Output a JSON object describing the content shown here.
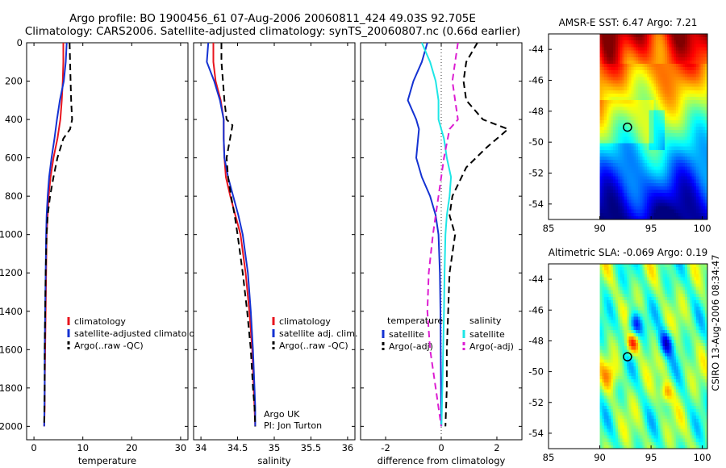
{
  "header": {
    "title_line1": "Argo profile: BO 1900456_61 07-Aug-2006 20060811_424 49.03S 92.705E",
    "title_line2": "Climatology: CARS2006. Satellite-adjusted climatology: synTS_20060807.nc (0.66d earlier)"
  },
  "colors": {
    "climatology": "#e8141e",
    "satellite": "#1432d2",
    "argo": "#000000",
    "sat_diff": "#1ee6e6",
    "argo_adj": "#dc1ed2"
  },
  "chart_data": [
    {
      "type": "line",
      "id": "temperature",
      "xlabel": "temperature",
      "ylabel": "",
      "xlim": [
        -1.5,
        31.5
      ],
      "ylim": [
        2070,
        0
      ],
      "xticks": [
        0,
        10,
        20,
        30
      ],
      "yticks": [
        0,
        200,
        400,
        600,
        800,
        1000,
        1200,
        1400,
        1600,
        1800,
        2000
      ],
      "series": [
        {
          "name": "climatology",
          "color": "#e8141e",
          "style": "solid",
          "x": [
            6.0,
            6.0,
            5.9,
            5.7,
            5.4,
            4.8,
            4.0,
            3.4,
            3.0,
            2.8,
            2.6,
            2.5,
            2.4,
            2.3,
            2.2,
            2.2,
            2.1
          ],
          "y": [
            0,
            100,
            200,
            300,
            400,
            500,
            600,
            700,
            800,
            900,
            1000,
            1200,
            1400,
            1600,
            1800,
            1900,
            2000
          ]
        },
        {
          "name": "satellite-adjusted climatology",
          "color": "#1432d2",
          "style": "solid",
          "x": [
            6.7,
            6.5,
            6.1,
            5.3,
            4.7,
            4.2,
            3.6,
            3.1,
            2.8,
            2.6,
            2.5,
            2.4,
            2.3,
            2.2,
            2.2,
            2.1
          ],
          "y": [
            0,
            100,
            200,
            300,
            400,
            500,
            600,
            700,
            800,
            900,
            1000,
            1200,
            1400,
            1600,
            1800,
            2000
          ]
        },
        {
          "name": "Argo(..raw -QC)",
          "color": "#000000",
          "style": "dashed",
          "x": [
            7.3,
            7.4,
            7.5,
            7.6,
            7.8,
            7.4,
            6.0,
            4.8,
            4.0,
            3.3,
            2.8,
            2.6,
            2.4,
            2.3,
            2.2,
            2.2,
            2.1
          ],
          "y": [
            0,
            100,
            200,
            300,
            400,
            450,
            500,
            600,
            700,
            800,
            900,
            1000,
            1200,
            1400,
            1600,
            1800,
            2000
          ]
        }
      ],
      "legend": {
        "position": "bottom-right",
        "entries": [
          "climatology",
          "satellite-adjusted climatology",
          "Argo(..raw -QC)"
        ]
      }
    },
    {
      "type": "line",
      "id": "salinity",
      "xlabel": "salinity",
      "xlim": [
        33.9,
        36.1
      ],
      "ylim": [
        2070,
        0
      ],
      "xticks": [
        34,
        34.5,
        35,
        35.5,
        36
      ],
      "yticks": [
        0,
        200,
        400,
        600,
        800,
        1000,
        1200,
        1400,
        1600,
        1800,
        2000
      ],
      "series": [
        {
          "name": "climatology",
          "color": "#e8141e",
          "style": "solid",
          "x": [
            34.17,
            34.17,
            34.2,
            34.27,
            34.31,
            34.31,
            34.32,
            34.34,
            34.4,
            34.47,
            34.54,
            34.61,
            34.66,
            34.7,
            34.72,
            34.73,
            34.74
          ],
          "y": [
            0,
            100,
            200,
            300,
            400,
            500,
            600,
            700,
            800,
            900,
            1000,
            1200,
            1400,
            1600,
            1800,
            1900,
            2000
          ]
        },
        {
          "name": "satellite adj. clim.",
          "color": "#1432d2",
          "style": "solid",
          "x": [
            34.1,
            34.08,
            34.18,
            34.26,
            34.31,
            34.31,
            34.32,
            34.37,
            34.44,
            34.51,
            34.57,
            34.64,
            34.68,
            34.71,
            34.73,
            34.74,
            34.74
          ],
          "y": [
            0,
            100,
            200,
            300,
            400,
            500,
            600,
            700,
            800,
            900,
            1000,
            1200,
            1400,
            1600,
            1800,
            1900,
            2000
          ]
        },
        {
          "name": "Argo(..raw -QC)",
          "color": "#000000",
          "style": "dashed",
          "x": [
            34.28,
            34.28,
            34.3,
            34.32,
            34.35,
            34.43,
            34.35,
            34.37,
            34.41,
            34.46,
            34.5,
            34.57,
            34.63,
            34.68,
            34.71,
            34.73,
            34.74
          ],
          "y": [
            0,
            100,
            200,
            300,
            400,
            430,
            600,
            700,
            800,
            900,
            1000,
            1200,
            1400,
            1600,
            1800,
            1900,
            2000
          ]
        }
      ],
      "legend": {
        "position": "bottom-right",
        "entries": [
          "climatology",
          "satellite adj. clim.",
          "Argo(..raw -QC)"
        ]
      },
      "annotations": [
        "Argo UK",
        "PI: Jon Turton"
      ]
    },
    {
      "type": "line",
      "id": "difference",
      "xlabel": "difference from climatology",
      "xlim": [
        -2.9,
        2.9
      ],
      "ylim": [
        2070,
        0
      ],
      "xticks": [
        -2,
        0,
        2
      ],
      "yticks": [
        0,
        200,
        400,
        600,
        800,
        1000,
        1200,
        1400,
        1600,
        1800,
        2000
      ],
      "series": [
        {
          "name": "temperature satellite",
          "color": "#1432d2",
          "style": "solid",
          "x": [
            -0.5,
            -0.7,
            -1.0,
            -1.2,
            -0.9,
            -0.8,
            -0.9,
            -0.7,
            -0.4,
            -0.2,
            -0.1,
            -0.05,
            -0.03,
            -0.02,
            -0.01,
            0
          ],
          "y": [
            0,
            100,
            200,
            300,
            400,
            450,
            600,
            700,
            800,
            900,
            1000,
            1200,
            1400,
            1600,
            1800,
            2000
          ]
        },
        {
          "name": "salinity satellite",
          "color": "#1ee6e6",
          "style": "solid",
          "x": [
            -0.7,
            -0.4,
            -0.2,
            -0.1,
            -0.1,
            0.1,
            0.2,
            0.35,
            0.3,
            0.2,
            0.15,
            0.12,
            0.1,
            0.07,
            0.04,
            0.01
          ],
          "y": [
            0,
            100,
            200,
            300,
            400,
            500,
            600,
            700,
            800,
            900,
            1000,
            1200,
            1400,
            1600,
            1800,
            2000
          ]
        },
        {
          "name": "temperature Argo(-adj)",
          "color": "#000000",
          "style": "dashed",
          "x": [
            1.3,
            0.9,
            0.8,
            0.9,
            1.5,
            2.4,
            1.6,
            0.9,
            0.4,
            0.3,
            0.5,
            0.3,
            0.25,
            0.2,
            0.2,
            0.15
          ],
          "y": [
            0,
            100,
            200,
            300,
            400,
            450,
            550,
            650,
            800,
            900,
            1000,
            1200,
            1400,
            1600,
            1800,
            2000
          ]
        },
        {
          "name": "salinity Argo(-adj)",
          "color": "#dc1ed2",
          "style": "dashed",
          "x": [
            0.6,
            0.5,
            0.4,
            0.5,
            0.6,
            0.3,
            0.1,
            0.0,
            -0.1,
            -0.2,
            -0.3,
            -0.45,
            -0.5,
            -0.4,
            -0.2,
            0.0
          ],
          "y": [
            0,
            100,
            200,
            300,
            400,
            450,
            600,
            700,
            800,
            900,
            1000,
            1200,
            1400,
            1600,
            1800,
            2000
          ]
        }
      ],
      "legend": {
        "position": "bottom",
        "groups": [
          {
            "title": "temperature",
            "entries": [
              "satellite",
              "Argo(-adj)"
            ]
          },
          {
            "title": "salinity",
            "entries": [
              "satellite",
              "Argo(-adj)"
            ]
          }
        ]
      }
    }
  ],
  "maps": [
    {
      "id": "sst",
      "title": "AMSR-E SST: 6.47 Argo: 7.21",
      "xlim": [
        85,
        100.5
      ],
      "ylim": [
        -55,
        -43
      ],
      "xticks": [
        85,
        90,
        95,
        100
      ],
      "yticks": [
        -44,
        -46,
        -48,
        -50,
        -52,
        -54
      ],
      "data_lon_start": 90,
      "marker": {
        "lon": 92.7,
        "lat": -49.03
      }
    },
    {
      "id": "sla",
      "title": "Altimetric SLA: -0.069 Argo: 0.19",
      "xlim": [
        85,
        100.5
      ],
      "ylim": [
        -55,
        -43
      ],
      "xticks": [
        85,
        90,
        95,
        100
      ],
      "yticks": [
        -44,
        -46,
        -48,
        -50,
        -52,
        -54
      ],
      "data_lon_start": 90,
      "marker": {
        "lon": 92.7,
        "lat": -49.03
      }
    }
  ],
  "side_label": "CSIRO 13-Aug-2006 08:34:47"
}
